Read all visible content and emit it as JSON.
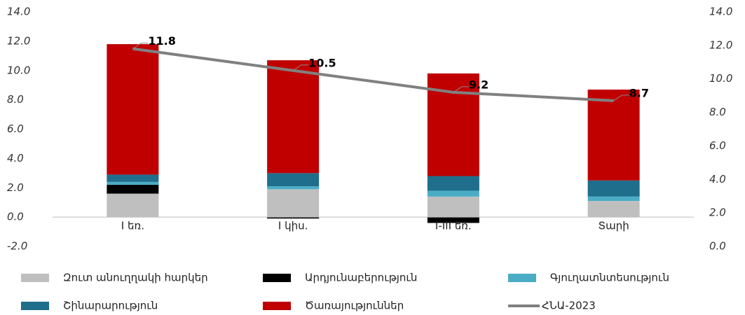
{
  "chart_data": {
    "type": "bar",
    "categories": [
      "I եռ.",
      "I կիս.",
      "I-III եռ.",
      "Տարի"
    ],
    "stacked": true,
    "series": [
      {
        "name": "Զուտ անուղղակի հարկեր",
        "color": "#bfbfbf",
        "values": [
          1.6,
          1.9,
          1.4,
          1.1
        ]
      },
      {
        "name": "Արդյունաբերություն",
        "color": "#000000",
        "values": [
          0.6,
          -0.1,
          -0.4,
          0
        ]
      },
      {
        "name": "Գյուղատնտեսություն",
        "color": "#4bacc6",
        "values": [
          0.2,
          0.2,
          0.4,
          0.3
        ]
      },
      {
        "name": "Շինարարություն",
        "color": "#1f6e8c",
        "values": [
          0.5,
          0.9,
          1.0,
          1.1
        ]
      },
      {
        "name": "Ծառայություններ",
        "color": "#c00000",
        "values": [
          8.9,
          7.7,
          7.0,
          6.2
        ]
      },
      {
        "name": "ՀՆԱ-2023",
        "color": "#808080",
        "type": "line",
        "axis": "y2",
        "values": [
          11.8,
          10.5,
          9.2,
          8.7
        ]
      }
    ],
    "ylim": [
      -2,
      14
    ],
    "yticks": [
      {
        "value": -2,
        "label": "-2.0"
      },
      {
        "value": 0,
        "label": "0.0"
      },
      {
        "value": 2,
        "label": "2.0"
      },
      {
        "value": 4,
        "label": "4.0"
      },
      {
        "value": 6,
        "label": "6.0"
      },
      {
        "value": 8,
        "label": "8.0"
      },
      {
        "value": 10,
        "label": "10.0"
      },
      {
        "value": 12,
        "label": "12.0"
      },
      {
        "value": 14,
        "label": "14.0"
      }
    ],
    "y2lim": [
      0,
      14
    ],
    "y2ticks": [
      {
        "value": 0,
        "label": "0.0"
      },
      {
        "value": 2,
        "label": "2.0"
      },
      {
        "value": 4,
        "label": "4.0"
      },
      {
        "value": 6,
        "label": "6.0"
      },
      {
        "value": 8,
        "label": "8.0"
      },
      {
        "value": 10,
        "label": "10.0"
      },
      {
        "value": 12,
        "label": "12.0"
      },
      {
        "value": 14,
        "label": "14.0"
      }
    ],
    "grid": false,
    "legend": "bottom"
  }
}
